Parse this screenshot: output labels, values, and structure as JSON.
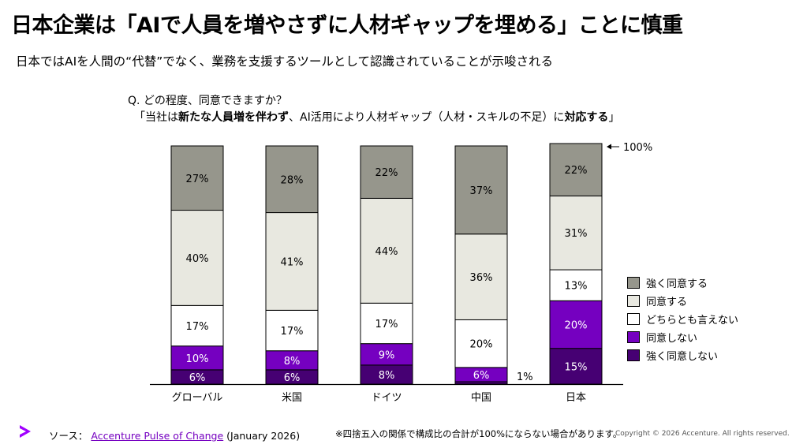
{
  "header": {
    "title": "日本企業は「AIで人員を増やさずに人材ギャップを埋める」ことに慎重",
    "subtitle": "日本ではAIを人間の“代替”でなく、業務を支援するツールとして認識されていることが示唆される"
  },
  "question": {
    "line1": "Q. どの程度、同意できますか？",
    "line2_a": "「当社は",
    "line2_b": "新たな人員増を伴わず",
    "line2_c": "、AI活用により人材ギャップ（人材・スキルの不足）に",
    "line2_d": "対応する",
    "line2_e": "」"
  },
  "chart_data": {
    "type": "bar",
    "stacked": true,
    "categories": [
      "グローバル",
      "米国",
      "ドイツ",
      "中国",
      "日本"
    ],
    "series": [
      {
        "name": "強く同意しない",
        "color": "#460073",
        "values": [
          6,
          6,
          8,
          1,
          15
        ]
      },
      {
        "name": "同意しない",
        "color": "#7500c0",
        "values": [
          10,
          8,
          9,
          6,
          20
        ]
      },
      {
        "name": "どちらとも言えない",
        "color": "#ffffff",
        "values": [
          17,
          17,
          17,
          20,
          13
        ]
      },
      {
        "name": "同意する",
        "color": "#e8e8e0",
        "values": [
          40,
          41,
          44,
          36,
          31
        ]
      },
      {
        "name": "強く同意する",
        "color": "#96968c",
        "values": [
          27,
          28,
          22,
          37,
          22
        ]
      }
    ],
    "value_labels": [
      [
        "6%",
        "6%",
        "8%",
        "",
        "15%"
      ],
      [
        "10%",
        "8%",
        "9%",
        "6%",
        "20%"
      ],
      [
        "17%",
        "17%",
        "17%",
        "20%",
        "13%"
      ],
      [
        "40%",
        "41%",
        "44%",
        "36%",
        "31%"
      ],
      [
        "27%",
        "28%",
        "22%",
        "37%",
        "22%"
      ]
    ],
    "outside_labels": [
      {
        "category": "中国",
        "series": "強く同意しない",
        "text": "1%"
      }
    ],
    "annotation": "100%",
    "ylim": [
      0,
      100
    ],
    "legend_position": "right"
  },
  "legend": {
    "items": [
      {
        "label": "強く同意する",
        "color": "#96968c"
      },
      {
        "label": "同意する",
        "color": "#e8e8e0"
      },
      {
        "label": "どちらとも言えない",
        "color": "#ffffff"
      },
      {
        "label": "同意しない",
        "color": "#7500c0"
      },
      {
        "label": "強く同意しない",
        "color": "#460073"
      }
    ]
  },
  "footer": {
    "source_prefix": "ソース：",
    "source_link": "Accenture Pulse of Change",
    "source_suffix": " (January 2026)",
    "note": "※四捨五入の関係で構成比の合計が100%にならない場合があります。",
    "copyright": "Copyright © 2026 Accenture. All rights reserved."
  },
  "colors": {
    "accent": "#a100ff",
    "dark_purple": "#460073",
    "purple": "#7500c0"
  }
}
